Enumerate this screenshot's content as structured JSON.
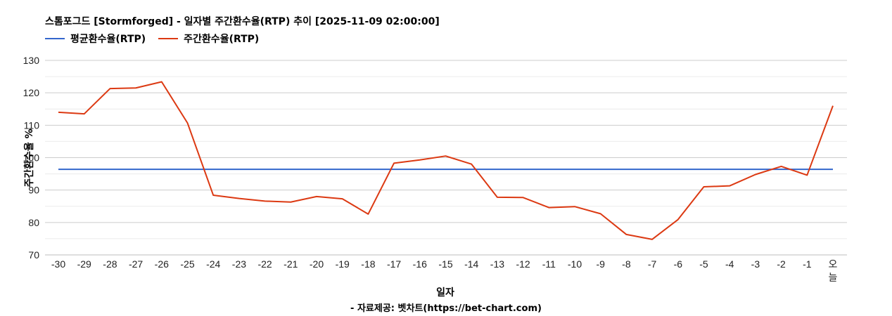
{
  "header": {
    "title": "스톰포그드 [Stormforged] - 일자별 주간환수율(RTP) 추이 [2025-11-09 02:00:00]"
  },
  "legend": [
    {
      "label": "평균환수율(RTP)",
      "color": "#3366cc"
    },
    {
      "label": "주간환수율(RTP)",
      "color": "#dc3912"
    }
  ],
  "footer": {
    "source": "- 자료제공: 벳차트(https://bet-chart.com)"
  },
  "chart_data": {
    "type": "line",
    "title": "스톰포그드 [Stormforged] - 일자별 주간환수율(RTP) 추이 [2025-11-09 02:00:00]",
    "xlabel": "일자",
    "ylabel": "주간환수율 %",
    "ylim": [
      70,
      130
    ],
    "yticks": [
      70,
      80,
      90,
      100,
      110,
      120,
      130
    ],
    "grid": true,
    "legend_position": "top-left",
    "categories": [
      "-30",
      "-29",
      "-28",
      "-27",
      "-26",
      "-25",
      "-24",
      "-23",
      "-22",
      "-21",
      "-20",
      "-19",
      "-18",
      "-17",
      "-16",
      "-15",
      "-14",
      "-13",
      "-12",
      "-11",
      "-10",
      "-9",
      "-8",
      "-7",
      "-6",
      "-5",
      "-4",
      "-3",
      "-2",
      "-1",
      "오늘"
    ],
    "series": [
      {
        "name": "평균환수율(RTP)",
        "color": "#3366cc",
        "values": [
          96.4,
          96.4,
          96.4,
          96.4,
          96.4,
          96.4,
          96.4,
          96.4,
          96.4,
          96.4,
          96.4,
          96.4,
          96.4,
          96.4,
          96.4,
          96.4,
          96.4,
          96.4,
          96.4,
          96.4,
          96.4,
          96.4,
          96.4,
          96.4,
          96.4,
          96.4,
          96.4,
          96.4,
          96.4,
          96.4,
          96.4
        ]
      },
      {
        "name": "주간환수율(RTP)",
        "color": "#dc3912",
        "values": [
          114.0,
          113.5,
          121.3,
          121.5,
          123.4,
          110.7,
          88.4,
          87.4,
          86.6,
          86.3,
          88.0,
          87.3,
          82.6,
          98.3,
          99.3,
          100.5,
          98.0,
          87.8,
          87.7,
          84.6,
          84.9,
          82.7,
          76.3,
          74.8,
          80.9,
          91.0,
          91.3,
          94.8,
          97.3,
          94.6,
          116.0
        ]
      }
    ],
    "source": "- 자료제공: 벳차트(https://bet-chart.com)"
  }
}
